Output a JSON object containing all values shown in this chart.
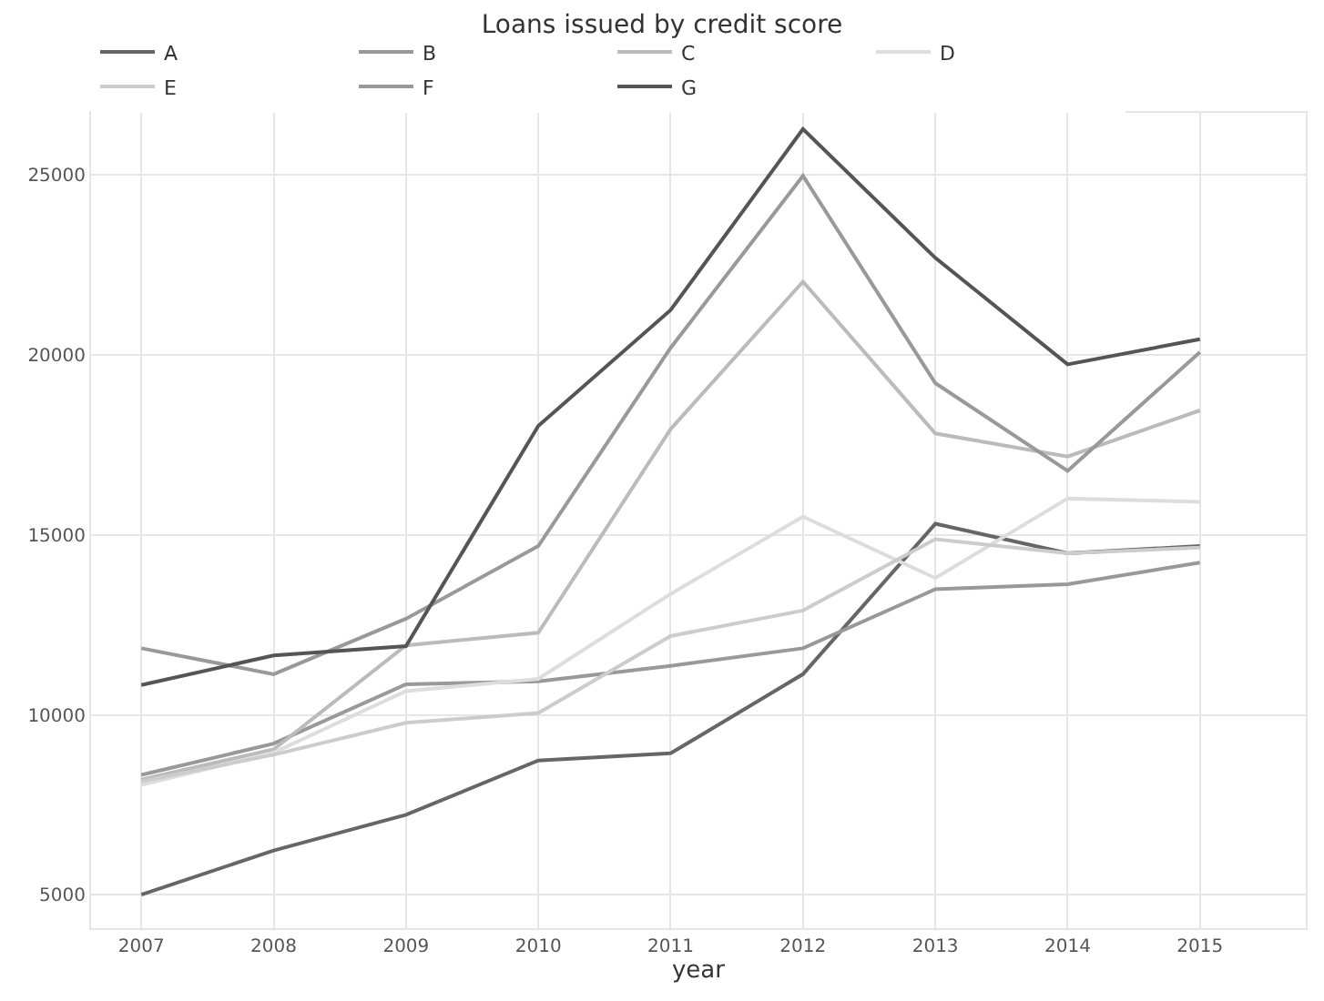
{
  "chart_data": {
    "type": "line",
    "title": "Loans issued by credit score",
    "xlabel": "year",
    "x": [
      2007,
      2008,
      2009,
      2010,
      2011,
      2012,
      2013,
      2014,
      2015
    ],
    "series": [
      {
        "name": "A",
        "color": "#666666",
        "values": [
          5000,
          6230,
          7220,
          8730,
          8930,
          11130,
          15310,
          14490,
          14690
        ]
      },
      {
        "name": "B",
        "color": "#999999",
        "values": [
          8330,
          9200,
          10850,
          10930,
          11360,
          11850,
          13490,
          13630,
          14230
        ]
      },
      {
        "name": "C",
        "color": "#bbbbbb",
        "values": [
          8200,
          9040,
          11930,
          12280,
          17940,
          22040,
          17820,
          17180,
          18460
        ]
      },
      {
        "name": "D",
        "color": "#dddddd",
        "values": [
          8050,
          8950,
          10660,
          11000,
          13360,
          15510,
          13800,
          16010,
          15920
        ]
      },
      {
        "name": "E",
        "color": "#cccccc",
        "values": [
          8150,
          8890,
          9780,
          10050,
          12190,
          12900,
          14880,
          14490,
          14650
        ]
      },
      {
        "name": "F",
        "color": "#999999",
        "values": [
          11850,
          11130,
          12670,
          14690,
          20200,
          24980,
          19220,
          16780,
          20080
        ]
      },
      {
        "name": "G",
        "color": "#555555",
        "values": [
          10830,
          11650,
          11910,
          18030,
          21250,
          26280,
          22700,
          19740,
          20440
        ]
      }
    ],
    "xlim": [
      2006.62,
      2015.8
    ],
    "xticks": [
      2007,
      2008,
      2009,
      2010,
      2011,
      2012,
      2013,
      2014,
      2015
    ],
    "ylim": [
      4070,
      26730
    ],
    "yticks": [
      5000,
      10000,
      15000,
      20000,
      25000
    ],
    "grid": true,
    "legend": "top",
    "marker": "none",
    "line_style": "solid"
  }
}
